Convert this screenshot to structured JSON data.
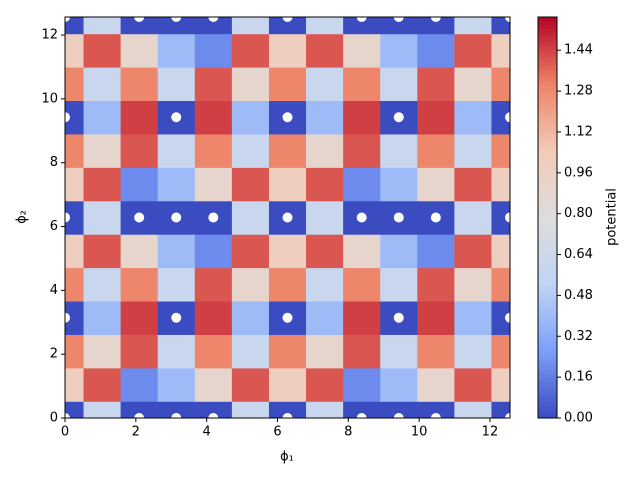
{
  "chart_data": {
    "type": "heatmap",
    "xlabel": "ϕ₁",
    "ylabel": "ϕ₂",
    "colorbar_label": "potential",
    "x": [
      0,
      1.047,
      2.094,
      3.142,
      4.189,
      5.236,
      6.283,
      7.33,
      8.378,
      9.425,
      10.472,
      11.519,
      12.566
    ],
    "y": [
      0,
      1.047,
      2.094,
      3.142,
      4.189,
      5.236,
      6.283,
      7.33,
      8.378,
      9.425,
      10.472,
      11.519,
      12.566
    ],
    "z": [
      [
        0,
        0.6,
        0,
        0,
        0,
        0.6,
        0,
        0.6,
        0,
        0,
        0,
        0.6,
        0
      ],
      [
        1.0,
        1.4,
        0.2,
        0.4,
        0.9,
        1.4,
        1.0,
        1.4,
        0.2,
        0.4,
        0.9,
        1.4,
        1.0
      ],
      [
        1.3,
        0.9,
        1.4,
        0.6,
        1.3,
        0.6,
        1.3,
        0.9,
        1.4,
        0.6,
        1.3,
        0.6,
        1.3
      ],
      [
        0,
        0.4,
        1.45,
        0,
        1.45,
        0.4,
        0,
        0.4,
        1.45,
        0,
        1.45,
        0.4,
        0
      ],
      [
        1.3,
        0.6,
        1.3,
        0.6,
        1.4,
        0.9,
        1.3,
        0.6,
        1.3,
        0.6,
        1.4,
        0.9,
        1.3
      ],
      [
        1.0,
        1.4,
        0.9,
        0.4,
        0.2,
        1.4,
        1.0,
        1.4,
        0.9,
        0.4,
        0.2,
        1.4,
        1.0
      ],
      [
        0,
        0.6,
        0,
        0,
        0,
        0.6,
        0,
        0.6,
        0,
        0,
        0,
        0.6,
        0
      ],
      [
        1.0,
        1.4,
        0.2,
        0.4,
        0.9,
        1.4,
        1.0,
        1.4,
        0.2,
        0.4,
        0.9,
        1.4,
        1.0
      ],
      [
        1.3,
        0.9,
        1.4,
        0.6,
        1.3,
        0.6,
        1.3,
        0.9,
        1.4,
        0.6,
        1.3,
        0.6,
        1.3
      ],
      [
        0,
        0.4,
        1.45,
        0,
        1.45,
        0.4,
        0,
        0.4,
        1.45,
        0,
        1.45,
        0.4,
        0
      ],
      [
        1.3,
        0.6,
        1.3,
        0.6,
        1.4,
        0.9,
        1.3,
        0.6,
        1.3,
        0.6,
        1.4,
        0.9,
        1.3
      ],
      [
        1.0,
        1.4,
        0.9,
        0.4,
        0.2,
        1.4,
        1.0,
        1.4,
        0.9,
        0.4,
        0.2,
        1.4,
        1.0
      ],
      [
        0,
        0.6,
        0,
        0,
        0,
        0.6,
        0,
        0.6,
        0,
        0,
        0,
        0.6,
        0
      ]
    ],
    "colormap": [
      "#3b4cc0",
      "#7b9ff9",
      "#c0d4f5",
      "#dddddd",
      "#f2cbb7",
      "#ee8468",
      "#b40426"
    ],
    "clim": [
      0,
      1.57
    ],
    "xlim": [
      0,
      12.566
    ],
    "ylim": [
      0,
      12.566
    ],
    "xticks": [
      0,
      2,
      4,
      6,
      8,
      10,
      12
    ],
    "yticks": [
      0,
      2,
      4,
      6,
      8,
      10,
      12
    ],
    "cticks": [
      {
        "value": 0,
        "label": "0.00"
      },
      {
        "value": 0.16,
        "label": "0.16"
      },
      {
        "value": 0.32,
        "label": "0.32"
      },
      {
        "value": 0.48,
        "label": "0.48"
      },
      {
        "value": 0.64,
        "label": "0.64"
      },
      {
        "value": 0.8,
        "label": "0.80"
      },
      {
        "value": 0.96,
        "label": "0.96"
      },
      {
        "value": 1.12,
        "label": "1.12"
      },
      {
        "value": 1.28,
        "label": "1.28"
      },
      {
        "value": 1.44,
        "label": "1.44"
      }
    ],
    "points": {
      "color": "#ffffff",
      "x": [
        0,
        2.094,
        3.142,
        4.189,
        6.283,
        8.378,
        9.425,
        10.472,
        12.566,
        0,
        3.142,
        6.283,
        9.425,
        12.566,
        0,
        2.094,
        3.142,
        4.189,
        6.283,
        8.378,
        9.425,
        10.472,
        12.566,
        0,
        3.142,
        6.283,
        9.425,
        12.566,
        0,
        2.094,
        3.142,
        4.189,
        6.283,
        8.378,
        9.425,
        10.472,
        12.566
      ],
      "y": [
        0,
        0,
        0,
        0,
        0,
        0,
        0,
        0,
        0,
        3.142,
        3.142,
        3.142,
        3.142,
        3.142,
        6.283,
        6.283,
        6.283,
        6.283,
        6.283,
        6.283,
        6.283,
        6.283,
        6.283,
        9.425,
        9.425,
        9.425,
        9.425,
        9.425,
        12.566,
        12.566,
        12.566,
        12.566,
        12.566,
        12.566,
        12.566,
        12.566,
        12.566
      ]
    }
  }
}
